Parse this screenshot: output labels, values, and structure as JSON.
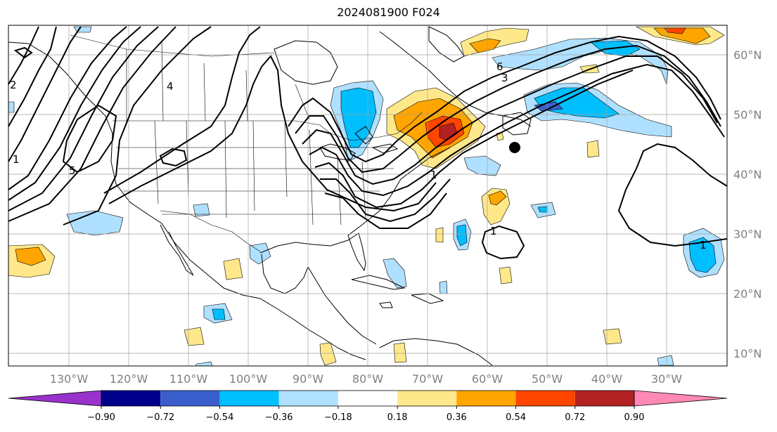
{
  "title": "2024081900 F024",
  "lat_labels": [
    "60°N",
    "50°N",
    "40°N",
    "30°N",
    "20°N",
    "10°N"
  ],
  "lon_labels": [
    "130°W",
    "120°W",
    "110°W",
    "100°W",
    "90°W",
    "80°W",
    "70°W",
    "60°W",
    "50°W",
    "40°W",
    "30°W"
  ],
  "colorbar": {
    "colors": [
      "#9932cc",
      "#00008b",
      "#3a5fcd",
      "#00bfff",
      "#b0e0ff",
      "#ffffff",
      "#ffe88a",
      "#ffa500",
      "#ff4500",
      "#b22222",
      "#ff88b4"
    ],
    "extend_min_color": "#9932cc",
    "extend_max_color": "#ff88b4",
    "tick_labels": [
      "−0.90",
      "−0.72",
      "−0.54",
      "−0.36",
      "−0.18",
      "0.18",
      "0.36",
      "0.54",
      "0.72",
      "0.90"
    ]
  },
  "contour_labels": [
    "1",
    "2",
    "3",
    "4",
    "5",
    "6",
    "1",
    "1",
    "1"
  ],
  "marker": {
    "type": "filled-circle",
    "color": "#000000"
  }
}
